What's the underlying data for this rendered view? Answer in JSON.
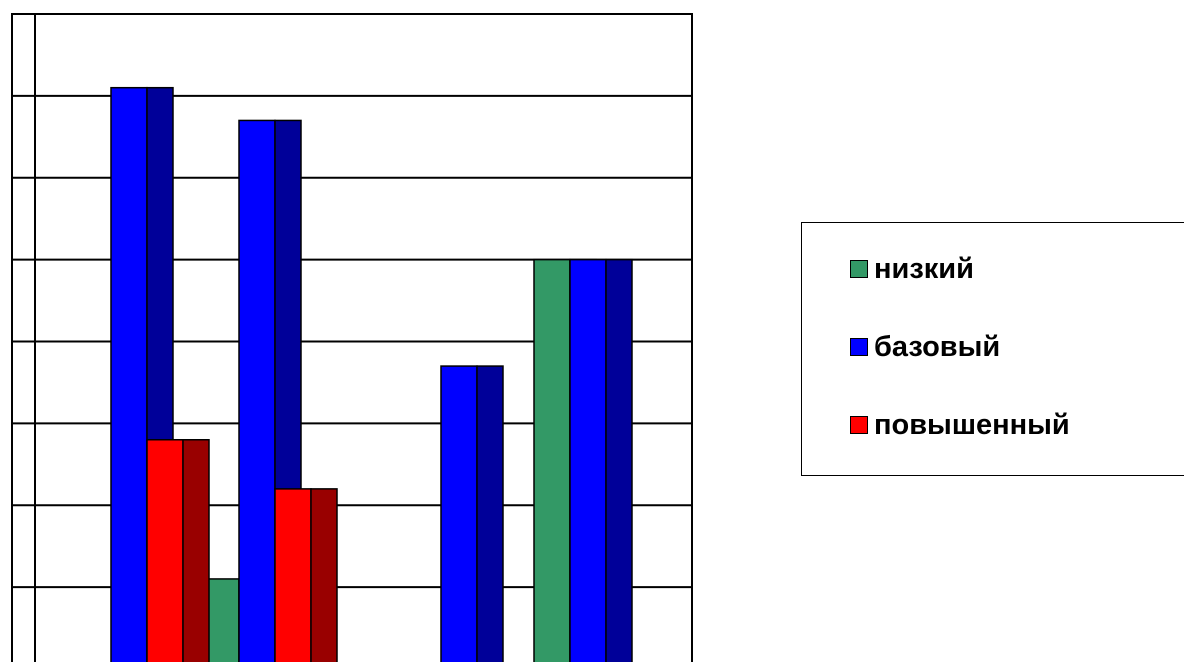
{
  "chart_data": {
    "type": "bar",
    "categories": [
      "",
      "",
      "",
      ""
    ],
    "ylim": [
      0,
      80
    ],
    "grid": true,
    "legend_position": "right",
    "series": [
      {
        "name": "низкий",
        "values": [
          0,
          11,
          0,
          50
        ],
        "color": "#339966",
        "side_color": "#1f6b45"
      },
      {
        "name": "базовый",
        "values": [
          71,
          67,
          37,
          50
        ],
        "color": "#0000ff",
        "side_color": "#000099"
      },
      {
        "name": "повышенный",
        "values": [
          28,
          22,
          0,
          0
        ],
        "color": "#ff0000",
        "side_color": "#990000"
      }
    ]
  },
  "legend": {
    "items": [
      {
        "label": "низкий",
        "color": "#339966"
      },
      {
        "label": "базовый",
        "color": "#0000ff"
      },
      {
        "label": "повышенный",
        "color": "#ff0000"
      }
    ]
  }
}
